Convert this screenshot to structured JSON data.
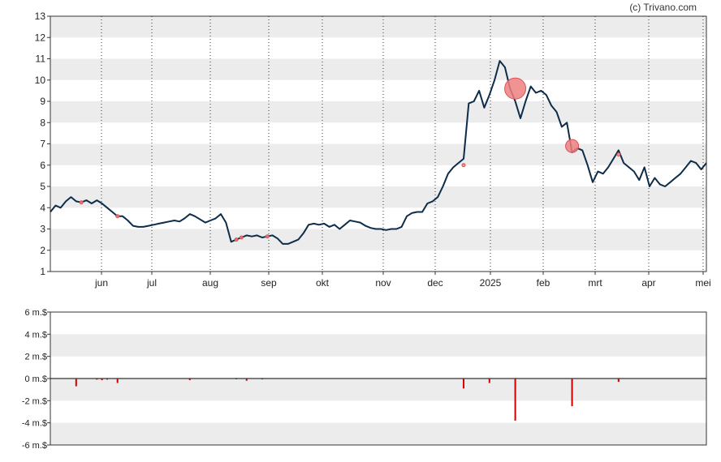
{
  "credit": "(c) Trivano.com",
  "chart_data": [
    {
      "type": "line",
      "ylim": [
        1,
        13
      ],
      "yticks": [
        "1",
        "2",
        "3",
        "4",
        "5",
        "6",
        "7",
        "8",
        "9",
        "10",
        "11",
        "12",
        "13"
      ],
      "xticks": [
        "jun",
        "jul",
        "aug",
        "sep",
        "okt",
        "nov",
        "dec",
        "2025",
        "feb",
        "mrt",
        "apr",
        "mei"
      ],
      "grid": "horizontal bands, dotted vertical month lines",
      "series": [
        {
          "color": "#0d2c4a",
          "points": [
            [
              0,
              3.8
            ],
            [
              1,
              4.1
            ],
            [
              2,
              4.0
            ],
            [
              3,
              4.3
            ],
            [
              4,
              4.5
            ],
            [
              5,
              4.3
            ],
            [
              6,
              4.25
            ],
            [
              7,
              4.35
            ],
            [
              8,
              4.2
            ],
            [
              9,
              4.35
            ],
            [
              10,
              4.2
            ],
            [
              11,
              4.0
            ],
            [
              12,
              3.8
            ],
            [
              13,
              3.6
            ],
            [
              14,
              3.6
            ],
            [
              15,
              3.4
            ],
            [
              16,
              3.15
            ],
            [
              17,
              3.1
            ],
            [
              18,
              3.1
            ],
            [
              19,
              3.15
            ],
            [
              20,
              3.2
            ],
            [
              21,
              3.25
            ],
            [
              22,
              3.3
            ],
            [
              23,
              3.35
            ],
            [
              24,
              3.4
            ],
            [
              25,
              3.35
            ],
            [
              26,
              3.5
            ],
            [
              27,
              3.7
            ],
            [
              28,
              3.6
            ],
            [
              29,
              3.45
            ],
            [
              30,
              3.3
            ],
            [
              31,
              3.4
            ],
            [
              32,
              3.5
            ],
            [
              33,
              3.7
            ],
            [
              34,
              3.3
            ],
            [
              35,
              2.4
            ],
            [
              36,
              2.5
            ],
            [
              37,
              2.6
            ],
            [
              38,
              2.7
            ],
            [
              39,
              2.65
            ],
            [
              40,
              2.7
            ],
            [
              41,
              2.6
            ],
            [
              42,
              2.65
            ],
            [
              43,
              2.7
            ],
            [
              44,
              2.55
            ],
            [
              45,
              2.3
            ],
            [
              46,
              2.3
            ],
            [
              47,
              2.4
            ],
            [
              48,
              2.5
            ],
            [
              49,
              2.8
            ],
            [
              50,
              3.2
            ],
            [
              51,
              3.25
            ],
            [
              52,
              3.2
            ],
            [
              53,
              3.25
            ],
            [
              54,
              3.1
            ],
            [
              55,
              3.2
            ],
            [
              56,
              3.0
            ],
            [
              57,
              3.2
            ],
            [
              58,
              3.4
            ],
            [
              59,
              3.35
            ],
            [
              60,
              3.3
            ],
            [
              61,
              3.15
            ],
            [
              62,
              3.05
            ],
            [
              63,
              3.0
            ],
            [
              64,
              3.0
            ],
            [
              65,
              2.95
            ],
            [
              66,
              3.0
            ],
            [
              67,
              3.0
            ],
            [
              68,
              3.1
            ],
            [
              69,
              3.6
            ],
            [
              70,
              3.75
            ],
            [
              71,
              3.8
            ],
            [
              72,
              3.8
            ],
            [
              73,
              4.2
            ],
            [
              74,
              4.3
            ],
            [
              75,
              4.5
            ],
            [
              76,
              5.0
            ],
            [
              77,
              5.6
            ],
            [
              78,
              5.9
            ],
            [
              79,
              6.1
            ],
            [
              80,
              6.3
            ],
            [
              81,
              8.9
            ],
            [
              82,
              9.0
            ],
            [
              83,
              9.5
            ],
            [
              84,
              8.7
            ],
            [
              85,
              9.3
            ],
            [
              86,
              10.0
            ],
            [
              87,
              10.9
            ],
            [
              88,
              10.6
            ],
            [
              89,
              9.6
            ],
            [
              90,
              9.0
            ],
            [
              91,
              8.2
            ],
            [
              92,
              9.0
            ],
            [
              93,
              9.7
            ],
            [
              94,
              9.4
            ],
            [
              95,
              9.5
            ],
            [
              96,
              9.3
            ],
            [
              97,
              8.8
            ],
            [
              98,
              8.5
            ],
            [
              99,
              7.8
            ],
            [
              100,
              8.0
            ],
            [
              101,
              6.6
            ],
            [
              102,
              6.8
            ],
            [
              103,
              6.7
            ],
            [
              104,
              6.0
            ],
            [
              105,
              5.2
            ],
            [
              106,
              5.7
            ],
            [
              107,
              5.6
            ],
            [
              108,
              5.9
            ],
            [
              109,
              6.3
            ],
            [
              110,
              6.7
            ],
            [
              111,
              6.1
            ],
            [
              112,
              5.9
            ],
            [
              113,
              5.7
            ],
            [
              114,
              5.3
            ],
            [
              115,
              5.9
            ],
            [
              116,
              5.0
            ],
            [
              117,
              5.4
            ],
            [
              118,
              5.1
            ],
            [
              119,
              5.0
            ],
            [
              120,
              5.2
            ],
            [
              121,
              5.4
            ],
            [
              122,
              5.6
            ],
            [
              123,
              5.9
            ],
            [
              124,
              6.2
            ],
            [
              125,
              6.1
            ],
            [
              126,
              5.8
            ],
            [
              127,
              6.1
            ]
          ]
        }
      ],
      "markers": [
        {
          "x": 6,
          "y": 4.25,
          "size": "small"
        },
        {
          "x": 13,
          "y": 3.6,
          "size": "small"
        },
        {
          "x": 36,
          "y": 2.5,
          "size": "small"
        },
        {
          "x": 37,
          "y": 2.6,
          "size": "small"
        },
        {
          "x": 42,
          "y": 2.65,
          "size": "small"
        },
        {
          "x": 80,
          "y": 6.0,
          "size": "small"
        },
        {
          "x": 90,
          "y": 9.6,
          "size": "large"
        },
        {
          "x": 101,
          "y": 6.9,
          "size": "medium"
        },
        {
          "x": 110,
          "y": 6.5,
          "size": "small"
        }
      ]
    },
    {
      "type": "bar",
      "ylim": [
        -6,
        6
      ],
      "yticks": [
        "6 m.$",
        "4 m.$",
        "2 m.$",
        "0 m.$",
        "-2 m.$",
        "-4 m.$",
        "-6 m.$"
      ],
      "ytick_values": [
        6,
        4,
        2,
        0,
        -2,
        -4,
        -6
      ],
      "unit": "m.$",
      "color": "#cc0000",
      "bars": [
        {
          "x": 5,
          "value": -0.7
        },
        {
          "x": 9,
          "value": -0.1
        },
        {
          "x": 10,
          "value": -0.15
        },
        {
          "x": 11,
          "value": -0.1
        },
        {
          "x": 13,
          "value": -0.4
        },
        {
          "x": 27,
          "value": -0.15
        },
        {
          "x": 36,
          "value": -0.05
        },
        {
          "x": 38,
          "value": -0.2
        },
        {
          "x": 41,
          "value": -0.08
        },
        {
          "x": 80,
          "value": -0.9
        },
        {
          "x": 85,
          "value": -0.4
        },
        {
          "x": 90,
          "value": -3.8
        },
        {
          "x": 101,
          "value": -2.5
        },
        {
          "x": 110,
          "value": -0.3
        }
      ]
    }
  ]
}
